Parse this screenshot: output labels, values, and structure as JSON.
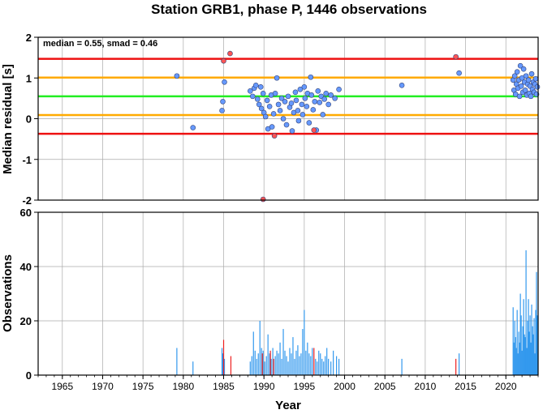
{
  "chart_data": [
    {
      "type": "scatter",
      "title": "Station GRB1, phase P, 1446 observations",
      "annotation": "median = 0.55, smad = 0.46",
      "xlabel": "",
      "ylabel": "Median residual [s]",
      "xlim": [
        1962,
        2024
      ],
      "ylim": [
        -2,
        2
      ],
      "yticks": [
        "-2",
        "-1",
        "0",
        "1",
        "2"
      ],
      "grid": true,
      "reference_lines": [
        {
          "value": 1.47,
          "color": "#ee1111"
        },
        {
          "value": 1.01,
          "color": "#ffaa00"
        },
        {
          "value": 0.55,
          "color": "#22ee22"
        },
        {
          "value": 0.09,
          "color": "#ffaa00"
        },
        {
          "value": -0.37,
          "color": "#ee1111"
        }
      ],
      "series": [
        {
          "color": "#6699ff",
          "points": [
            [
              1979.2,
              1.05
            ],
            [
              1981.2,
              -0.22
            ],
            [
              1984.8,
              0.2
            ],
            [
              1984.9,
              0.42
            ],
            [
              1985.1,
              0.9
            ],
            [
              1988.3,
              0.68
            ],
            [
              1988.6,
              0.55
            ],
            [
              1988.8,
              0.75
            ],
            [
              1989.0,
              0.82
            ],
            [
              1989.2,
              0.48
            ],
            [
              1989.4,
              0.35
            ],
            [
              1989.6,
              0.78
            ],
            [
              1989.7,
              0.25
            ],
            [
              1989.9,
              0.62
            ],
            [
              1990.0,
              0.15
            ],
            [
              1990.2,
              0.05
            ],
            [
              1990.4,
              0.45
            ],
            [
              1990.5,
              -0.25
            ],
            [
              1990.7,
              0.3
            ],
            [
              1990.9,
              0.58
            ],
            [
              1991.0,
              -0.2
            ],
            [
              1991.2,
              0.12
            ],
            [
              1991.4,
              0.62
            ],
            [
              1991.6,
              1.0
            ],
            [
              1991.8,
              0.35
            ],
            [
              1992.0,
              0.2
            ],
            [
              1992.2,
              0.5
            ],
            [
              1992.4,
              0.0
            ],
            [
              1992.6,
              0.42
            ],
            [
              1992.8,
              -0.15
            ],
            [
              1993.0,
              0.55
            ],
            [
              1993.2,
              0.28
            ],
            [
              1993.4,
              0.38
            ],
            [
              1993.5,
              -0.3
            ],
            [
              1993.7,
              0.15
            ],
            [
              1993.9,
              0.65
            ],
            [
              1994.0,
              0.45
            ],
            [
              1994.2,
              0.2
            ],
            [
              1994.3,
              -0.05
            ],
            [
              1994.5,
              0.72
            ],
            [
              1994.7,
              0.35
            ],
            [
              1994.8,
              0.1
            ],
            [
              1995.0,
              0.78
            ],
            [
              1995.1,
              0.5
            ],
            [
              1995.3,
              0.3
            ],
            [
              1995.4,
              0.62
            ],
            [
              1995.6,
              -0.1
            ],
            [
              1995.8,
              1.02
            ],
            [
              1995.9,
              0.58
            ],
            [
              1996.1,
              0.22
            ],
            [
              1996.3,
              0.42
            ],
            [
              1996.5,
              -0.28
            ],
            [
              1996.7,
              0.68
            ],
            [
              1996.9,
              0.4
            ],
            [
              1997.1,
              0.55
            ],
            [
              1997.3,
              0.1
            ],
            [
              1997.5,
              0.48
            ],
            [
              1997.7,
              0.62
            ],
            [
              1998.0,
              0.35
            ],
            [
              1998.3,
              0.58
            ],
            [
              1998.8,
              0.5
            ],
            [
              1999.3,
              0.72
            ],
            [
              2007.1,
              0.82
            ],
            [
              2014.2,
              1.12
            ],
            [
              2020.9,
              0.95
            ],
            [
              2021.0,
              0.7
            ],
            [
              2021.1,
              1.05
            ],
            [
              2021.2,
              0.6
            ],
            [
              2021.3,
              0.85
            ],
            [
              2021.4,
              1.15
            ],
            [
              2021.5,
              0.75
            ],
            [
              2021.6,
              0.95
            ],
            [
              2021.7,
              0.55
            ],
            [
              2021.8,
              1.3
            ],
            [
              2021.9,
              0.8
            ],
            [
              2022.0,
              1.0
            ],
            [
              2022.1,
              0.65
            ],
            [
              2022.2,
              1.22
            ],
            [
              2022.3,
              0.9
            ],
            [
              2022.4,
              0.7
            ],
            [
              2022.5,
              1.05
            ],
            [
              2022.6,
              0.58
            ],
            [
              2022.7,
              0.85
            ],
            [
              2022.8,
              0.95
            ],
            [
              2022.9,
              0.62
            ],
            [
              2023.0,
              0.8
            ],
            [
              2023.1,
              0.55
            ],
            [
              2023.2,
              1.1
            ],
            [
              2023.3,
              0.72
            ],
            [
              2023.4,
              0.9
            ],
            [
              2023.5,
              0.65
            ],
            [
              2023.6,
              0.85
            ],
            [
              2023.7,
              0.98
            ],
            [
              2023.8,
              0.6
            ],
            [
              2023.9,
              0.78
            ]
          ]
        },
        {
          "color": "#ff5555",
          "points": [
            [
              1985.0,
              1.42
            ],
            [
              1985.8,
              1.6
            ],
            [
              1989.9,
              -1.98
            ],
            [
              1991.3,
              -0.42
            ],
            [
              1996.2,
              -0.28
            ],
            [
              2013.8,
              1.52
            ]
          ]
        }
      ]
    },
    {
      "type": "bar",
      "title": "",
      "xlabel": "Year",
      "ylabel": "Observations",
      "xlim": [
        1962,
        2024
      ],
      "ylim": [
        0,
        60
      ],
      "xticks": [
        "1965",
        "1970",
        "1975",
        "1980",
        "1985",
        "1990",
        "1995",
        "2000",
        "2005",
        "2010",
        "2015",
        "2020"
      ],
      "yticks": [
        "0",
        "20",
        "40",
        "60"
      ],
      "grid": true,
      "series": [
        {
          "color": "#3399ee",
          "x": [
            1979.2,
            1981.2,
            1984.8,
            1984.9,
            1985.1,
            1988.3,
            1988.5,
            1988.7,
            1988.9,
            1989.1,
            1989.3,
            1989.5,
            1989.7,
            1989.9,
            1990.1,
            1990.3,
            1990.5,
            1990.7,
            1990.9,
            1991.1,
            1991.4,
            1991.6,
            1991.8,
            1992.0,
            1992.2,
            1992.4,
            1992.6,
            1992.8,
            1993.0,
            1993.2,
            1993.4,
            1993.6,
            1993.8,
            1994.0,
            1994.2,
            1994.4,
            1994.6,
            1994.8,
            1995.0,
            1995.2,
            1995.4,
            1995.6,
            1995.8,
            1996.0,
            1996.4,
            1996.6,
            1996.8,
            1997.0,
            1997.2,
            1997.4,
            1997.6,
            1997.8,
            1998.0,
            1998.3,
            1998.6,
            1999.0,
            1999.3,
            2007.1,
            2014.2,
            2020.9,
            2021.0,
            2021.1,
            2021.2,
            2021.3,
            2021.4,
            2021.5,
            2021.6,
            2021.7,
            2021.8,
            2021.9,
            2022.0,
            2022.1,
            2022.2,
            2022.3,
            2022.4,
            2022.5,
            2022.6,
            2022.7,
            2022.8,
            2022.9,
            2023.0,
            2023.1,
            2023.2,
            2023.3,
            2023.4,
            2023.5,
            2023.6,
            2023.7,
            2023.8,
            2023.9
          ],
          "values": [
            10,
            5,
            10,
            8,
            6,
            5,
            7,
            16,
            9,
            6,
            8,
            20,
            10,
            9,
            5,
            7,
            15,
            8,
            6,
            10,
            7,
            9,
            8,
            12,
            6,
            17,
            9,
            7,
            5,
            10,
            8,
            14,
            6,
            9,
            11,
            7,
            8,
            17,
            24,
            9,
            12,
            8,
            7,
            10,
            6,
            5,
            9,
            8,
            6,
            5,
            7,
            10,
            6,
            5,
            9,
            7,
            6,
            6,
            8,
            25,
            12,
            20,
            14,
            10,
            24,
            8,
            16,
            12,
            30,
            22,
            9,
            18,
            28,
            15,
            14,
            46,
            10,
            20,
            28,
            16,
            22,
            12,
            26,
            18,
            15,
            21,
            8,
            24,
            38,
            22
          ]
        },
        {
          "color": "#ee2222",
          "x": [
            1985.0,
            1985.9,
            1989.8,
            1990.8,
            1991.2,
            1996.2,
            2013.8
          ],
          "values": [
            13,
            7,
            8,
            9,
            6,
            10,
            6
          ]
        }
      ]
    }
  ]
}
